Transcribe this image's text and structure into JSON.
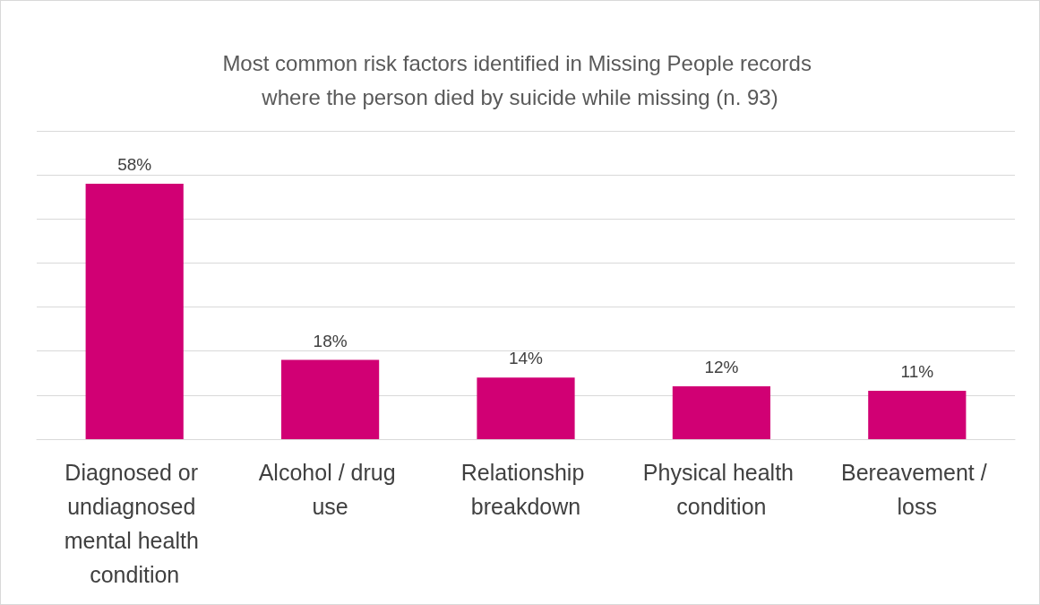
{
  "chart_data": {
    "type": "bar",
    "title": "Most common risk factors identified in Missing People records where the person died by suicide while missing (n. 93)",
    "categories": [
      "Diagnosed or undiagnosed mental health condition",
      "Alcohol / drug use",
      "Relationship breakdown",
      "Physical health condition",
      "Bereavement / loss"
    ],
    "values": [
      58,
      18,
      14,
      12,
      11
    ],
    "value_labels": [
      "58%",
      "18%",
      "14%",
      "12%",
      "11%"
    ],
    "color": "#d10074",
    "ylim": [
      0,
      70
    ],
    "yticks": [
      {
        "value": 0,
        "label": null
      },
      {
        "value": 10,
        "label": null
      },
      {
        "value": 20,
        "label": null
      },
      {
        "value": 30,
        "label": null
      },
      {
        "value": 40,
        "label": null
      },
      {
        "value": 50,
        "label": null
      },
      {
        "value": 60,
        "label": null
      },
      {
        "value": 70,
        "label": null
      }
    ],
    "grid": "y",
    "tick_labels": "x"
  }
}
